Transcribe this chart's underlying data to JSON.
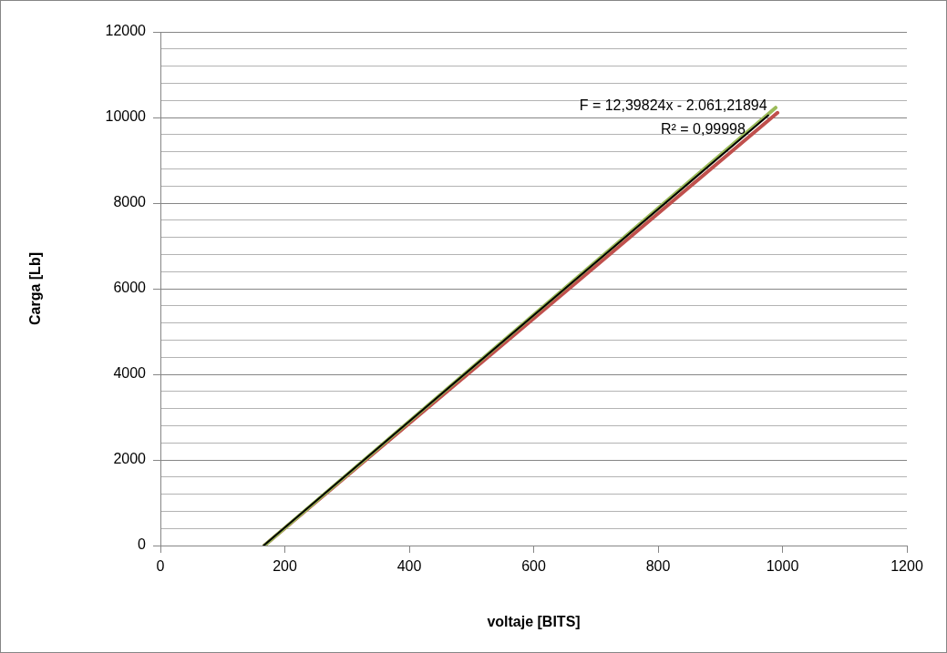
{
  "chart_data": {
    "type": "line",
    "xlabel": "voltaje [BITS]",
    "ylabel": "Carga [Lb]",
    "annotations": [
      "F = 12,39824x - 2.061,21894",
      "R² = 0,99998"
    ],
    "xlim": [
      0,
      1200
    ],
    "xticks": [
      0,
      200,
      400,
      600,
      800,
      1000,
      1200
    ],
    "ylim": [
      0,
      12000
    ],
    "yticks": [
      0,
      {
        "value": 400,
        "label": null
      },
      {
        "value": 800,
        "label": null
      },
      {
        "value": 1200,
        "label": null
      },
      {
        "value": 1600,
        "label": null
      },
      2000,
      {
        "value": 2400,
        "label": null
      },
      {
        "value": 2800,
        "label": null
      },
      {
        "value": 3200,
        "label": null
      },
      {
        "value": 3600,
        "label": null
      },
      4000,
      {
        "value": 4400,
        "label": null
      },
      {
        "value": 4800,
        "label": null
      },
      {
        "value": 5200,
        "label": null
      },
      {
        "value": 5600,
        "label": null
      },
      6000,
      {
        "value": 6400,
        "label": null
      },
      {
        "value": 6800,
        "label": null
      },
      {
        "value": 7200,
        "label": null
      },
      {
        "value": 7600,
        "label": null
      },
      8000,
      {
        "value": 8400,
        "label": null
      },
      {
        "value": 8800,
        "label": null
      },
      {
        "value": 9200,
        "label": null
      },
      {
        "value": 9600,
        "label": null
      },
      10000,
      {
        "value": 10400,
        "label": null
      },
      {
        "value": 10800,
        "label": null
      },
      {
        "value": 11200,
        "label": null
      },
      {
        "value": 11600,
        "label": null
      },
      12000
    ],
    "grid": "y",
    "legend": false,
    "marker": "none",
    "series": [
      {
        "color": "#c0504d",
        "x": [
          167,
          992
        ],
        "values": [
          0,
          10110
        ]
      },
      {
        "color": "#9bbb59",
        "x": [
          167,
          989
        ],
        "values": [
          0,
          10230
        ]
      },
      {
        "color": "#000000",
        "x": [
          166,
          977
        ],
        "values": [
          0,
          10050
        ]
      }
    ]
  }
}
